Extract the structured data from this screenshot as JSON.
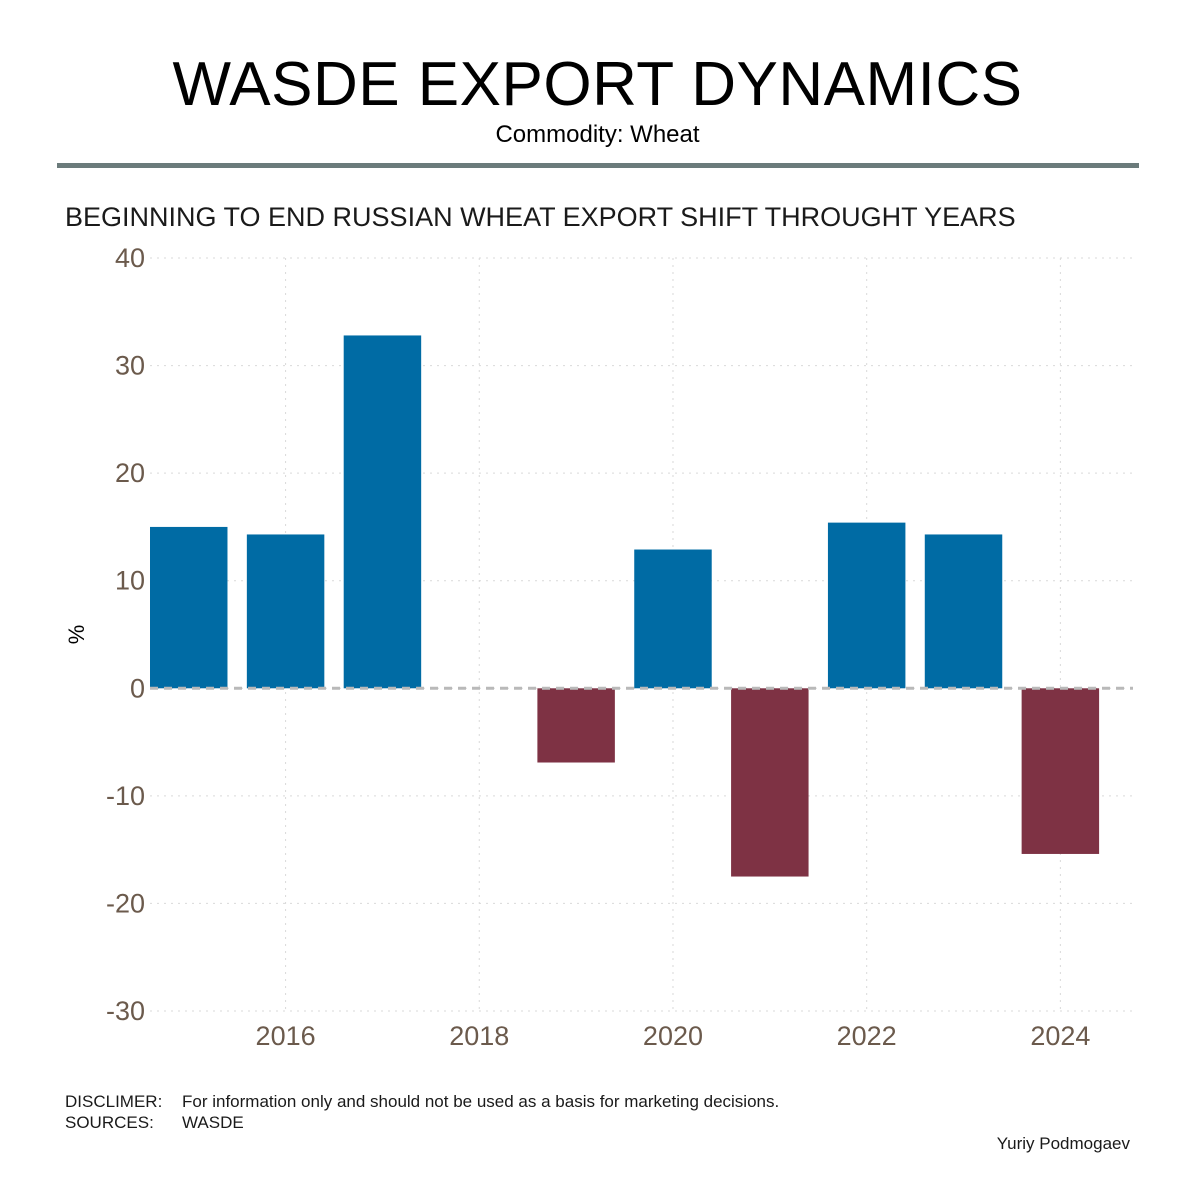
{
  "header": {
    "title": "WASDE EXPORT DYNAMICS",
    "subtitle": "Commodity: Wheat"
  },
  "chart_data": {
    "type": "bar",
    "title": "BEGINNING TO END RUSSIAN WHEAT EXPORT SHIFT THROUGHT YEARS",
    "xlabel": "",
    "ylabel": "%",
    "x": [
      2015,
      2016,
      2017,
      2018,
      2019,
      2020,
      2021,
      2022,
      2023,
      2024
    ],
    "values": [
      15.0,
      14.3,
      32.8,
      0,
      -6.9,
      12.9,
      -17.5,
      15.4,
      14.3,
      -15.4
    ],
    "xlim": [
      2014.6,
      2024.75
    ],
    "ylim": [
      -30,
      40
    ],
    "xticks": [
      2016,
      2018,
      2020,
      2022,
      2024
    ],
    "yticks": [
      -30,
      -20,
      -10,
      0,
      10,
      20,
      30,
      40
    ],
    "grid": true,
    "colors": {
      "positive": "#006ba4",
      "negative": "#7e3244",
      "zero_line": "#b9b9b9",
      "grid": "#d9d9d9"
    }
  },
  "footer": {
    "disclaimer_key": "DISCLIMER:",
    "disclaimer_text": "For information only and should not be used as a basis for marketing decisions.",
    "sources_key": "SOURCES:",
    "sources_text": "WASDE",
    "author": "Yuriy Podmogaev"
  }
}
